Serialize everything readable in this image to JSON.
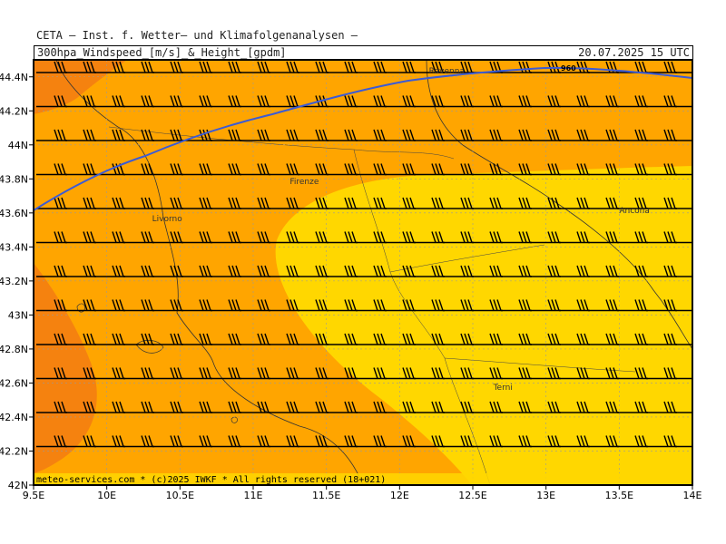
{
  "header": {
    "title": "CETA — Inst. f. Wetter— und Klimafolgenanalysen —",
    "parameter": "300hpa_Windspeed_[m/s]_&_Height_[gpdm]",
    "valid_time": "20.07.2025 15 UTC"
  },
  "footer": {
    "credit": "meteo-services.com * (c)2025 IWKF * All rights reserved (18+021)"
  },
  "chart_data": {
    "type": "map",
    "x_axis": {
      "ticks": [
        "9.5E",
        "10E",
        "10.5E",
        "11E",
        "11.5E",
        "12E",
        "12.5E",
        "13E",
        "13.5E",
        "14E"
      ],
      "values": [
        9.5,
        10,
        10.5,
        11,
        11.5,
        12,
        12.5,
        13,
        13.5,
        14
      ],
      "range": [
        9.5,
        14
      ]
    },
    "y_axis": {
      "ticks": [
        "42N",
        "42.2N",
        "42.4N",
        "42.6N",
        "42.8N",
        "43N",
        "43.2N",
        "43.4N",
        "43.6N",
        "43.8N",
        "44N",
        "44.2N",
        "44.4N"
      ],
      "values": [
        42,
        42.2,
        42.4,
        42.6,
        42.8,
        43,
        43.2,
        43.4,
        43.6,
        43.8,
        44,
        44.2,
        44.4
      ],
      "range": [
        42,
        44.5
      ]
    },
    "grid": "dotted",
    "cities": [
      {
        "name": "Ravenna",
        "lon": 12.2,
        "lat": 44.42
      },
      {
        "name": "Firenze",
        "lon": 11.25,
        "lat": 43.77
      },
      {
        "name": "Livorno",
        "lon": 10.31,
        "lat": 43.55
      },
      {
        "name": "Ancona",
        "lon": 13.5,
        "lat": 43.6
      },
      {
        "name": "Terni",
        "lon": 12.64,
        "lat": 42.56
      }
    ],
    "height_contour": {
      "label": "960",
      "color": "#3b5bd6"
    },
    "wind_speed_classes": [
      {
        "range": "higher",
        "color": "#f47c0a"
      },
      {
        "range": "mid",
        "color": "#ffa500"
      },
      {
        "range": "lower",
        "color": "#ffd700"
      }
    ],
    "wind_direction": "westerly"
  }
}
